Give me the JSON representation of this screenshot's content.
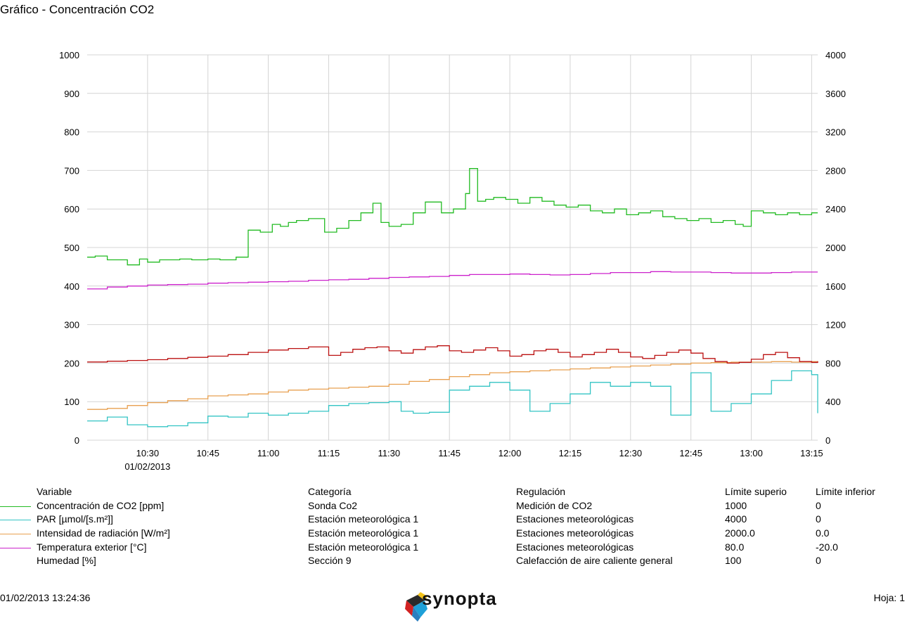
{
  "page": {
    "title": "Gráfico - Concentración CO2",
    "printed_at": "01/02/2013 13:24:36",
    "page_label": "Hoja: 1",
    "logo_text": "synopta"
  },
  "legend": {
    "headers": [
      "Variable",
      "Categoría",
      "Regulación",
      "Límite superio",
      "Límite inferior"
    ],
    "rows": [
      {
        "color": "#22bb22",
        "variable": "Concentración de CO2 [ppm]",
        "categoria": "Sonda Co2",
        "regulacion": "Medición de CO2",
        "sup": "1000",
        "inf": "0"
      },
      {
        "color": "#33c4c4",
        "variable": "PAR [µmol/[s.m²]]",
        "categoria": "Estación meteorológica 1",
        "regulacion": "Estaciones meteorológicas",
        "sup": "4000",
        "inf": "0"
      },
      {
        "color": "#e8a050",
        "variable": "Intensidad de radiación [W/m²]",
        "categoria": "Estación meteorológica 1",
        "regulacion": "Estaciones meteorológicas",
        "sup": "2000.0",
        "inf": "0.0"
      },
      {
        "color": "#cc22cc",
        "variable": "Temperatura exterior [°C]",
        "categoria": "Estación meteorológica 1",
        "regulacion": "Estaciones meteorológicas",
        "sup": "80.0",
        "inf": "-20.0"
      },
      {
        "color": "#bb1111",
        "variable": "Humedad [%]",
        "categoria": "Sección 9",
        "regulacion": "Calefacción de aire caliente general",
        "sup": "100",
        "inf": "0"
      }
    ]
  },
  "chart_data": {
    "type": "line",
    "title": "Gráfico - Concentración CO2",
    "x_tick_labels": [
      "10:30",
      "10:45",
      "11:00",
      "11:15",
      "11:30",
      "11:45",
      "12:00",
      "12:15",
      "12:30",
      "12:45",
      "13:00",
      "13:15"
    ],
    "x_tick_minutes": [
      630,
      645,
      660,
      675,
      690,
      705,
      720,
      735,
      750,
      765,
      780,
      795
    ],
    "x_date_label": "01/02/2013",
    "xlim_minutes": [
      615,
      796.5
    ],
    "y_left": {
      "ticks": [
        0,
        100,
        200,
        300,
        400,
        500,
        600,
        700,
        800,
        900,
        1000
      ],
      "ylim": [
        0,
        1000
      ]
    },
    "y_right": {
      "ticks": [
        0,
        400,
        800,
        1200,
        1600,
        2000,
        2400,
        2800,
        3200,
        3600,
        4000
      ],
      "ylim": [
        0,
        4000
      ]
    },
    "grid": true,
    "step": true,
    "series": [
      {
        "name": "Concentración de CO2 [ppm]",
        "color": "#22bb22",
        "x": [
          615,
          617,
          620,
          625,
          628,
          630,
          633,
          638,
          641,
          645,
          648,
          652,
          655,
          658,
          661,
          663,
          665,
          667,
          670,
          674,
          677,
          680,
          683,
          686,
          688,
          690,
          693,
          696,
          699,
          703,
          706,
          709,
          710,
          712,
          714,
          716,
          719,
          722,
          725,
          728,
          731,
          734,
          737,
          740,
          743,
          746,
          749,
          752,
          755,
          758,
          761,
          764,
          767,
          770,
          773,
          776,
          778,
          780,
          783,
          786,
          789,
          792,
          795
        ],
        "y": [
          475,
          478,
          468,
          455,
          470,
          462,
          468,
          470,
          468,
          470,
          468,
          475,
          545,
          540,
          560,
          555,
          565,
          570,
          575,
          540,
          550,
          570,
          590,
          615,
          565,
          555,
          560,
          590,
          618,
          590,
          600,
          640,
          705,
          620,
          625,
          630,
          625,
          615,
          630,
          620,
          610,
          605,
          610,
          595,
          590,
          600,
          585,
          590,
          595,
          580,
          575,
          570,
          575,
          565,
          570,
          560,
          555,
          595,
          590,
          585,
          590,
          585,
          590
        ]
      },
      {
        "name": "PAR [µmol/[s.m²]]",
        "color": "#33c4c4",
        "x": [
          615,
          620,
          625,
          630,
          635,
          640,
          645,
          650,
          655,
          660,
          665,
          670,
          675,
          680,
          685,
          690,
          693,
          696,
          700,
          705,
          710,
          715,
          720,
          725,
          730,
          735,
          740,
          745,
          750,
          755,
          760,
          765,
          770,
          775,
          780,
          785,
          790,
          795,
          796.5
        ],
        "y": [
          200,
          240,
          160,
          140,
          150,
          180,
          250,
          240,
          280,
          260,
          280,
          300,
          360,
          380,
          390,
          400,
          300,
          280,
          290,
          520,
          560,
          600,
          520,
          300,
          380,
          480,
          600,
          560,
          600,
          560,
          260,
          700,
          300,
          380,
          480,
          620,
          720,
          680,
          280
        ]
      },
      {
        "name": "Intensidad de radiación [W/m²]",
        "color": "#e8a050",
        "x": [
          615,
          620,
          625,
          630,
          635,
          640,
          645,
          650,
          655,
          660,
          665,
          670,
          675,
          680,
          685,
          690,
          695,
          700,
          705,
          710,
          715,
          720,
          725,
          730,
          735,
          740,
          745,
          750,
          755,
          760,
          765,
          770,
          775,
          780,
          785,
          790,
          795,
          796.5
        ],
        "y": [
          320,
          330,
          360,
          390,
          410,
          430,
          460,
          470,
          480,
          500,
          520,
          530,
          540,
          550,
          560,
          580,
          610,
          630,
          660,
          680,
          700,
          710,
          720,
          730,
          740,
          750,
          760,
          770,
          780,
          790,
          800,
          805,
          810,
          810,
          815,
          810,
          815,
          815
        ]
      },
      {
        "name": "Temperatura exterior [°C]",
        "color": "#cc22cc",
        "x": [
          615,
          620,
          625,
          630,
          635,
          640,
          645,
          650,
          655,
          660,
          665,
          670,
          675,
          680,
          685,
          690,
          695,
          700,
          705,
          710,
          715,
          720,
          725,
          730,
          735,
          740,
          745,
          750,
          755,
          760,
          765,
          770,
          775,
          780,
          785,
          790,
          795,
          796.5
        ],
        "y": [
          1570,
          1590,
          1600,
          1610,
          1615,
          1620,
          1630,
          1635,
          1640,
          1645,
          1650,
          1660,
          1665,
          1670,
          1680,
          1690,
          1695,
          1700,
          1710,
          1720,
          1720,
          1725,
          1720,
          1715,
          1720,
          1730,
          1740,
          1740,
          1750,
          1745,
          1745,
          1740,
          1735,
          1735,
          1740,
          1745,
          1745,
          1745
        ]
      },
      {
        "name": "Humedad [%]",
        "color": "#bb1111",
        "x": [
          615,
          620,
          625,
          630,
          635,
          640,
          645,
          650,
          655,
          660,
          665,
          670,
          675,
          678,
          681,
          684,
          687,
          690,
          693,
          696,
          699,
          702,
          705,
          708,
          711,
          714,
          717,
          720,
          723,
          726,
          729,
          732,
          735,
          738,
          741,
          744,
          747,
          750,
          753,
          756,
          759,
          762,
          765,
          768,
          771,
          774,
          777,
          780,
          783,
          786,
          789,
          792,
          795,
          796.5
        ],
        "y": [
          203,
          205,
          207,
          209,
          212,
          215,
          218,
          222,
          228,
          234,
          238,
          242,
          220,
          228,
          236,
          240,
          242,
          232,
          226,
          235,
          242,
          245,
          232,
          228,
          234,
          240,
          232,
          218,
          222,
          232,
          236,
          228,
          216,
          222,
          228,
          236,
          228,
          216,
          212,
          220,
          228,
          234,
          226,
          212,
          204,
          200,
          202,
          210,
          222,
          228,
          214,
          204,
          202,
          205
        ]
      }
    ]
  }
}
